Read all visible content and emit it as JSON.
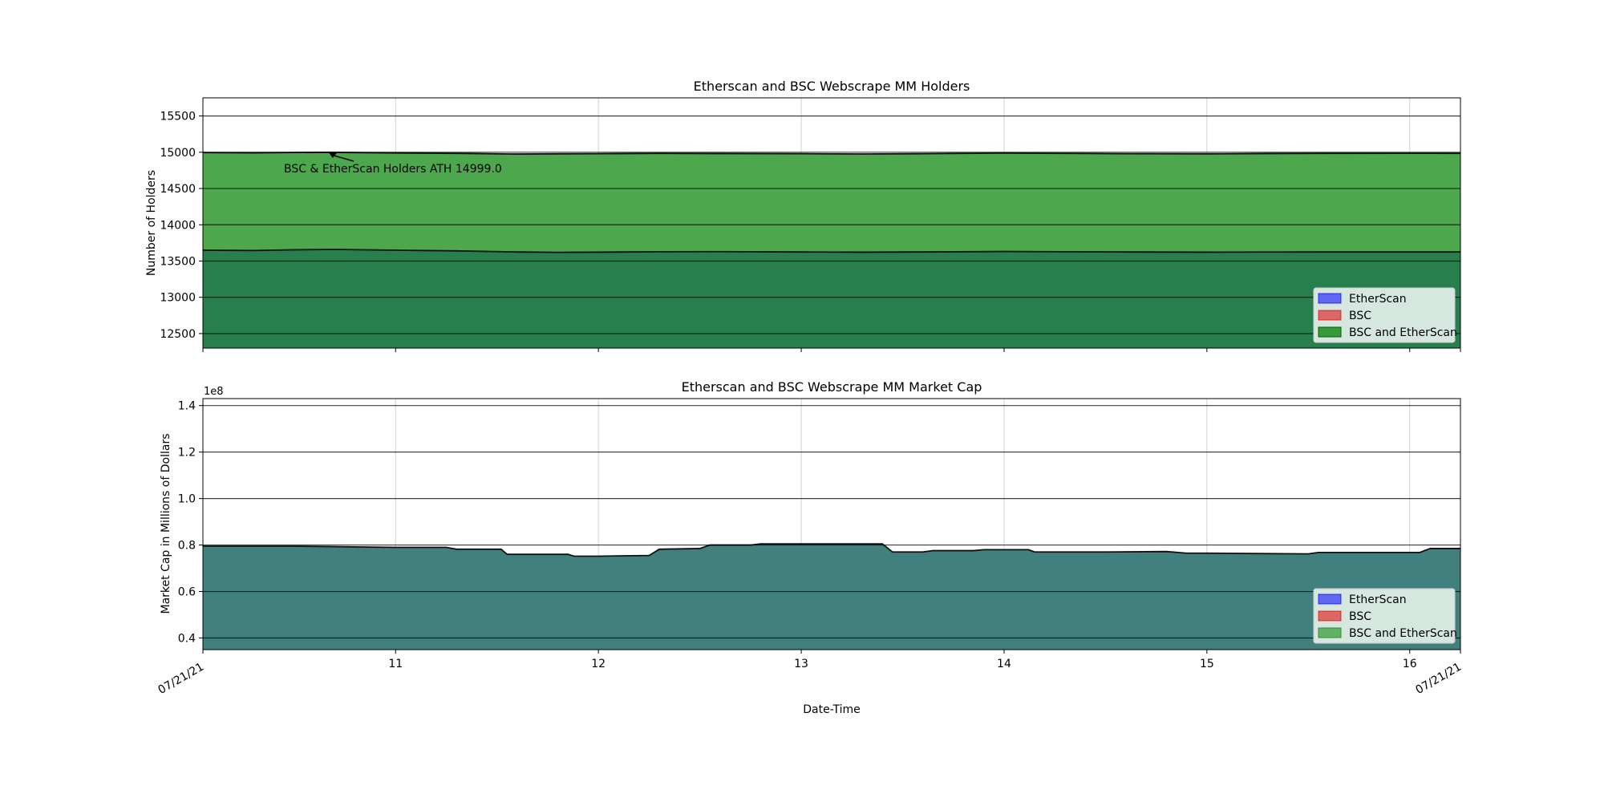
{
  "colors": {
    "etherscan": "#0000ff",
    "bsc": "#e00000",
    "both": "#008000",
    "holders_lower_fill": "#267f4c",
    "holders_upper_fill": "#4da84d",
    "marketcap_fill": "#42807d",
    "legend_bg": "#d6e7e0"
  },
  "chart_data": [
    {
      "type": "area",
      "title": "Etherscan and BSC Webscrape MM Holders",
      "xlabel": "",
      "ylabel": "Number of Holders",
      "x_range_days": [
        10.05,
        16.25
      ],
      "x_ticks": [
        {
          "pos": 10.05,
          "label": "07/21/21",
          "rotated": true
        },
        {
          "pos": 11,
          "label": "11"
        },
        {
          "pos": 12,
          "label": "12"
        },
        {
          "pos": 13,
          "label": "13"
        },
        {
          "pos": 14,
          "label": "14"
        },
        {
          "pos": 15,
          "label": "15"
        },
        {
          "pos": 16,
          "label": "16"
        },
        {
          "pos": 16.25,
          "label": "07/21/21",
          "rotated": true
        }
      ],
      "ylim": [
        12300,
        15750
      ],
      "y_ticks": [
        12500,
        13000,
        13500,
        14000,
        14500,
        15000,
        15500
      ],
      "grid": true,
      "legend_position": "lower-right",
      "legend": [
        "EtherScan",
        "BSC",
        "BSC and EtherScan"
      ],
      "annotation": {
        "text": "BSC & EtherScan Holders ATH 14999.0",
        "x": 10.67,
        "y": 14999
      },
      "series": [
        {
          "name": "BSC",
          "x": [
            10.05,
            10.3,
            10.5,
            10.7,
            11.0,
            11.3,
            11.6,
            11.8,
            12.0,
            12.3,
            12.6,
            13.0,
            13.3,
            13.6,
            14.0,
            14.3,
            14.6,
            15.0,
            15.3,
            15.6,
            16.0,
            16.25
          ],
          "y": [
            13650,
            13645,
            13655,
            13660,
            13650,
            13640,
            13625,
            13620,
            13622,
            13628,
            13630,
            13625,
            13622,
            13625,
            13632,
            13628,
            13625,
            13622,
            13624,
            13625,
            13625,
            13625
          ]
        },
        {
          "name": "BSC and EtherScan",
          "x": [
            10.05,
            10.3,
            10.5,
            10.67,
            11.0,
            11.3,
            11.6,
            11.8,
            12.0,
            12.3,
            12.6,
            13.0,
            13.3,
            13.6,
            14.0,
            14.3,
            14.6,
            15.0,
            15.3,
            15.6,
            16.0,
            16.25
          ],
          "y": [
            14995,
            14992,
            14997,
            14999,
            14990,
            14985,
            14975,
            14978,
            14980,
            14985,
            14982,
            14980,
            14976,
            14980,
            14988,
            14984,
            14980,
            14978,
            14982,
            14985,
            14986,
            14985
          ]
        }
      ]
    },
    {
      "type": "area",
      "title": "Etherscan and BSC Webscrape MM Market Cap",
      "xlabel": "Date-Time",
      "ylabel": "Market Cap in Millions of Dollars",
      "y_offset_label": "1e8",
      "x_range_days": [
        10.05,
        16.25
      ],
      "ylim": [
        0.35,
        1.43
      ],
      "y_ticks": [
        {
          "v": 0.4,
          "label": "0.4"
        },
        {
          "v": 0.6,
          "label": "0.6"
        },
        {
          "v": 0.8,
          "label": "0.8"
        },
        {
          "v": 1.0,
          "label": "1.0"
        },
        {
          "v": 1.2,
          "label": "1.2"
        },
        {
          "v": 1.4,
          "label": "1.4"
        }
      ],
      "grid": true,
      "legend_position": "lower-right",
      "legend": [
        "EtherScan",
        "BSC",
        "BSC and EtherScan"
      ],
      "series": [
        {
          "name": "BSC and EtherScan",
          "x": [
            10.05,
            10.5,
            11.0,
            11.25,
            11.3,
            11.52,
            11.55,
            11.85,
            11.88,
            12.0,
            12.25,
            12.3,
            12.5,
            12.55,
            12.75,
            12.8,
            13.4,
            13.45,
            13.6,
            13.65,
            13.85,
            13.9,
            14.12,
            14.15,
            14.3,
            14.5,
            14.8,
            14.9,
            15.0,
            15.3,
            15.5,
            15.55,
            15.9,
            16.05,
            16.1,
            16.25
          ],
          "y": [
            0.795,
            0.795,
            0.79,
            0.79,
            0.782,
            0.782,
            0.76,
            0.76,
            0.752,
            0.752,
            0.755,
            0.782,
            0.785,
            0.8,
            0.8,
            0.805,
            0.805,
            0.77,
            0.77,
            0.776,
            0.776,
            0.78,
            0.78,
            0.77,
            0.77,
            0.77,
            0.772,
            0.765,
            0.765,
            0.763,
            0.762,
            0.768,
            0.768,
            0.768,
            0.785,
            0.785
          ]
        }
      ]
    }
  ]
}
